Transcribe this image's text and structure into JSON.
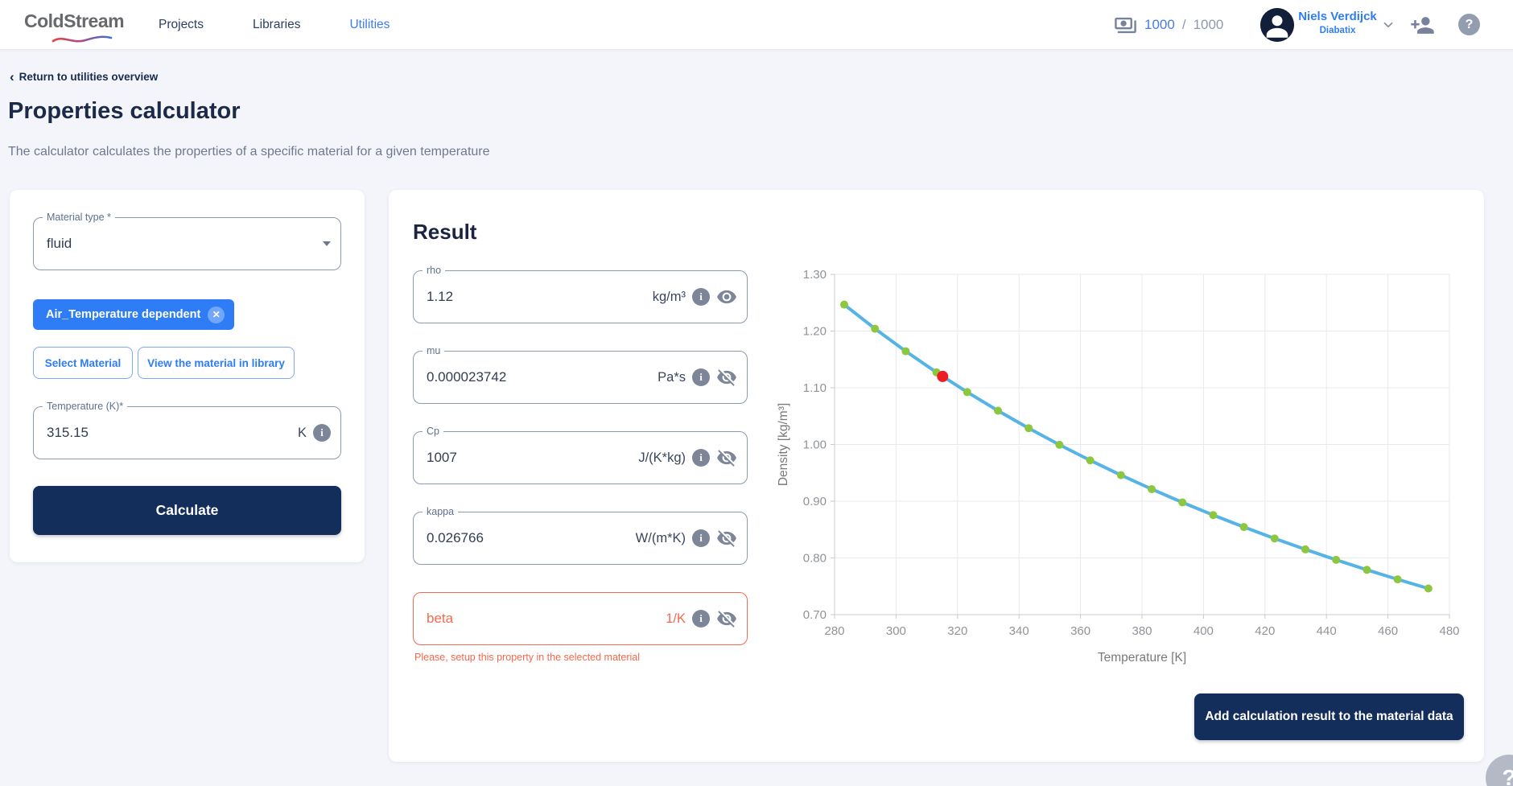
{
  "nav": {
    "logo": "ColdStream",
    "items": [
      {
        "label": "Projects"
      },
      {
        "label": "Libraries"
      },
      {
        "label": "Utilities"
      }
    ],
    "credits": {
      "used": "1000",
      "separator": "/",
      "total": "1000"
    },
    "user": {
      "name": "Niels Verdijck",
      "org": "Diabatix"
    },
    "help_glyph": "?"
  },
  "header": {
    "back_arrow": "‹",
    "breadcrumb": "Return to utilities overview",
    "title": "Properties calculator",
    "subtitle": "The calculator calculates the properties of a specific material for a given temperature"
  },
  "form": {
    "material_type": {
      "label": "Material type *",
      "value": "fluid"
    },
    "material_chip": {
      "label": "Air_Temperature dependent",
      "close_glyph": "✕"
    },
    "select_material_button": "Select Material",
    "view_material_button": "View the material in library",
    "temperature": {
      "label": "Temperature (K)*",
      "value": "315.15",
      "unit": "K"
    },
    "calculate_button": "Calculate",
    "info_glyph": "i"
  },
  "result": {
    "title": "Result",
    "fields": [
      {
        "label": "rho",
        "value": "1.12",
        "unit": "kg/m³",
        "visibility": "on",
        "error": false
      },
      {
        "label": "mu",
        "value": "0.000023742",
        "unit": "Pa*s",
        "visibility": "off",
        "error": false
      },
      {
        "label": "Cp",
        "value": "1007",
        "unit": "J/(K*kg)",
        "visibility": "off",
        "error": false
      },
      {
        "label": "kappa",
        "value": "0.026766",
        "unit": "W/(m*K)",
        "visibility": "off",
        "error": false
      },
      {
        "label": "beta",
        "value": "",
        "unit": "1/K",
        "visibility": "off",
        "error": true,
        "error_message": "Please, setup this property in the selected material"
      }
    ],
    "add_button": "Add calculation result to the material data"
  },
  "chart_data": {
    "type": "line",
    "title": "",
    "xlabel": "Temperature [K]",
    "ylabel": "Density [kg/m³]",
    "xlim": [
      280,
      480
    ],
    "ylim": [
      0.7,
      1.3
    ],
    "x_ticks": [
      280,
      300,
      320,
      340,
      360,
      380,
      400,
      420,
      440,
      460,
      480
    ],
    "y_ticks": [
      0.7,
      0.8,
      0.9,
      1.0,
      1.1,
      1.2,
      1.3
    ],
    "grid": true,
    "legend": "none",
    "series": [
      {
        "name": "density",
        "color": "#56b3e6",
        "point_color": "#8dc63f",
        "x": [
          283.15,
          293.15,
          303.15,
          313.15,
          323.15,
          333.15,
          343.15,
          353.15,
          363.15,
          373.15,
          383.15,
          393.15,
          403.15,
          413.15,
          423.15,
          433.15,
          443.15,
          453.15,
          463.15,
          473.15
        ],
        "y": [
          1.2466,
          1.2041,
          1.1644,
          1.1272,
          1.0923,
          1.0596,
          1.0287,
          0.9995,
          0.972,
          0.946,
          0.9213,
          0.8979,
          0.8756,
          0.8544,
          0.8342,
          0.815,
          0.7966,
          0.779,
          0.7622,
          0.7461
        ]
      }
    ],
    "highlight_point": {
      "x": 315.15,
      "y": 1.12,
      "color": "#ee1c23"
    }
  },
  "floating_help_glyph": "?",
  "colors": {
    "accent_blue": "#2f7df6",
    "navy": "#142e5c",
    "error": "#f4694e",
    "line_blue": "#56b3e6",
    "point_green": "#8dc63f",
    "point_red": "#ee1c23"
  }
}
